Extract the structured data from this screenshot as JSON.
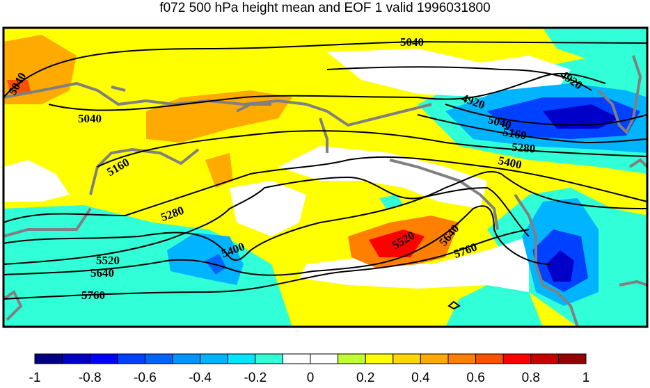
{
  "title": "f072 500 hPa height mean and EOF 1 valid 1996031800",
  "contour_labels": [
    "5040",
    "5040",
    "5040",
    "4920",
    "4920",
    "5040",
    "5160",
    "5280",
    "5400",
    "5160",
    "5280",
    "5400",
    "5520",
    "5640",
    "5760",
    "5520",
    "5640",
    "5760"
  ],
  "colorbar": {
    "colors": [
      "#000080",
      "#0000c8",
      "#0000ff",
      "#0040ff",
      "#0064ff",
      "#0096ff",
      "#00b4ff",
      "#00e6ff",
      "#30ffd8",
      "#ffffff",
      "#ffffff",
      "#c0ff30",
      "#ffff00",
      "#ffd700",
      "#ffaa00",
      "#ff8000",
      "#ff5000",
      "#ff0000",
      "#c80000",
      "#960000"
    ],
    "tick_labels": [
      "-1",
      "-0.8",
      "-0.6",
      "-0.4",
      "-0.2",
      "0",
      "0.2",
      "0.4",
      "0.6",
      "0.8",
      "1"
    ]
  },
  "legend_colors": {
    "positive": "#ffff00",
    "negative": "#30ffd8",
    "zero": "#ffffff",
    "coast": "#808080"
  }
}
